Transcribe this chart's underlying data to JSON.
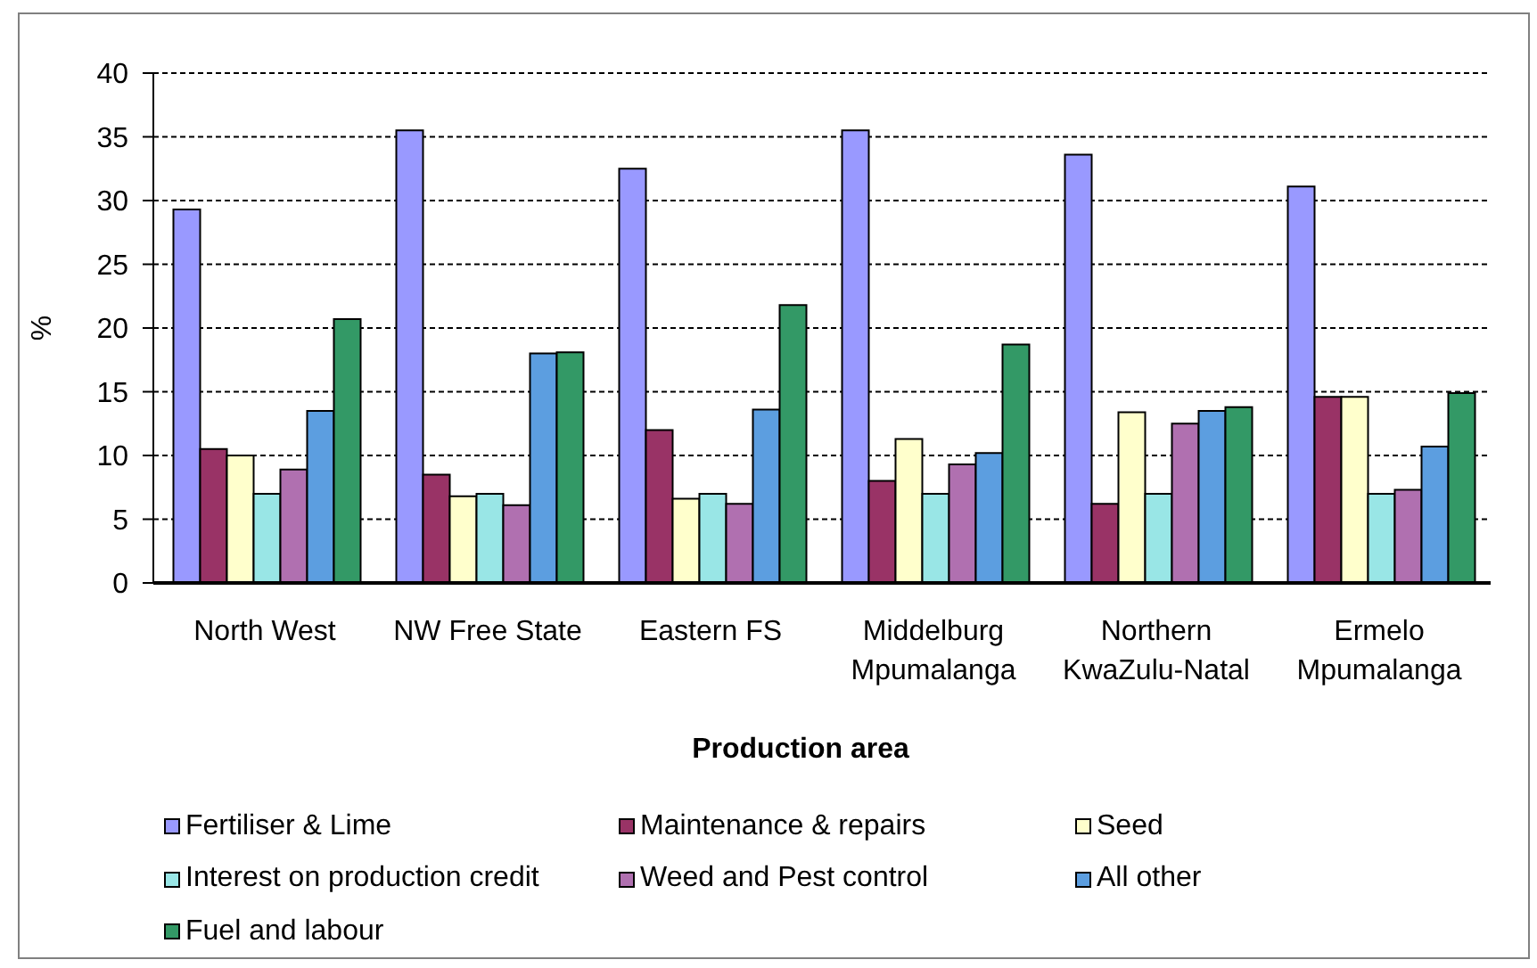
{
  "chart_data": {
    "type": "bar",
    "xlabel": "Production area",
    "ylabel": "%",
    "categories": [
      "North West",
      "NW Free State",
      "Eastern FS",
      "Middelburg Mpumalanga",
      "Northern KwaZulu-Natal",
      "Ermelo Mpumalanga"
    ],
    "series": [
      {
        "name": "Fertiliser & Lime",
        "color": "#9999ff",
        "values": [
          29.3,
          35.5,
          32.5,
          35.5,
          33.6,
          31.1
        ]
      },
      {
        "name": "Maintenance & repairs",
        "color": "#993366",
        "values": [
          10.5,
          8.5,
          12.0,
          8.0,
          6.2,
          14.6
        ]
      },
      {
        "name": "Seed",
        "color": "#ffffcc",
        "values": [
          10.0,
          6.8,
          6.6,
          11.3,
          13.4,
          14.6
        ]
      },
      {
        "name": "Interest on production credit",
        "color": "#99e6e6",
        "values": [
          7.0,
          7.0,
          7.0,
          7.0,
          7.0,
          7.0
        ]
      },
      {
        "name": "Weed and Pest control",
        "color": "#b070b0",
        "values": [
          8.9,
          6.1,
          6.2,
          9.3,
          12.5,
          7.3
        ]
      },
      {
        "name": "All other",
        "color": "#5c9ee0",
        "values": [
          13.5,
          18.0,
          13.6,
          10.2,
          13.5,
          10.7
        ]
      },
      {
        "name": "Fuel and labour",
        "color": "#339966",
        "values": [
          20.7,
          18.1,
          21.8,
          18.7,
          13.8,
          14.9
        ]
      }
    ],
    "ylim": [
      0,
      40
    ],
    "yticks": [
      0,
      5,
      10,
      15,
      20,
      25,
      30,
      35,
      40
    ],
    "grid": "y",
    "legend": "bottom"
  }
}
